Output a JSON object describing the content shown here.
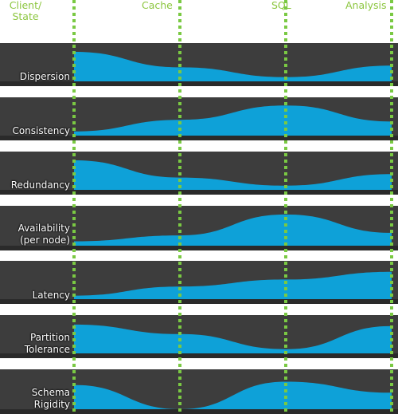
{
  "columns": [
    {
      "label": "Client/\nState"
    },
    {
      "label": "Cache"
    },
    {
      "label": "SQL"
    },
    {
      "label": "Analysis"
    }
  ],
  "rows": [
    {
      "label": "Dispersion",
      "profile": [
        0.84,
        0.4,
        0.12,
        0.45
      ]
    },
    {
      "label": "Consistency",
      "profile": [
        0.12,
        0.45,
        0.86,
        0.4
      ]
    },
    {
      "label": "Redundancy",
      "profile": [
        0.84,
        0.35,
        0.12,
        0.45
      ]
    },
    {
      "label": "Availability\n(per node)",
      "profile": [
        0.12,
        0.28,
        0.85,
        0.35
      ]
    },
    {
      "label": "Latency",
      "profile": [
        0.1,
        0.36,
        0.56,
        0.78
      ]
    },
    {
      "label": "Partition\nTolerance",
      "profile": [
        0.82,
        0.55,
        0.12,
        0.78
      ]
    },
    {
      "label": "Schema\nRigidity",
      "profile": [
        0.66,
        0.0,
        0.75,
        0.45
      ]
    }
  ],
  "colors": {
    "band": "#3d3d3d",
    "band_base": "#2a2a2a",
    "fill": "#0ea1d8",
    "divider": "#7ac943",
    "column_label": "#8cc63f",
    "row_label": "#ffffff"
  }
}
